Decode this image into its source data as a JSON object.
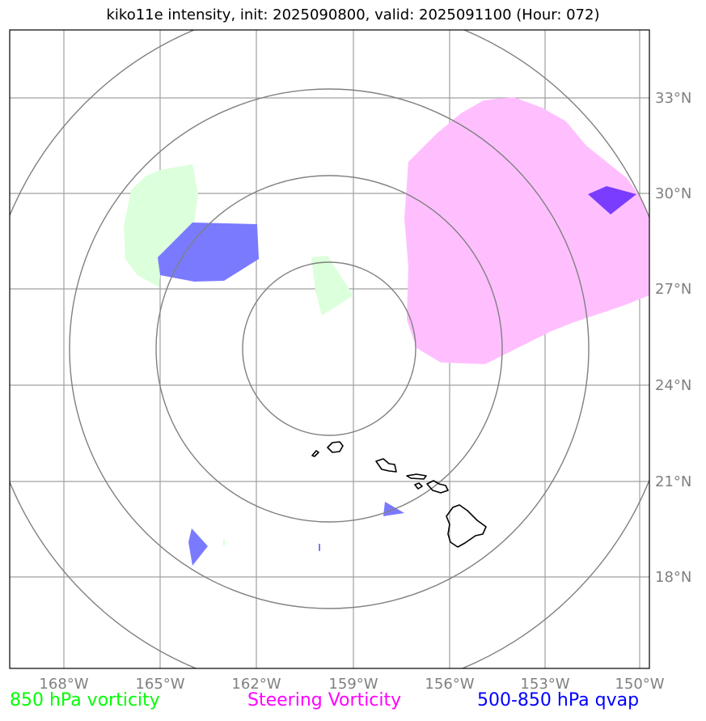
{
  "title": "kiko11e intensity, init: 2025090800, valid: 2025091100 (Hour: 072)",
  "axes": {
    "lon_labels": [
      "168°W",
      "165°W",
      "162°W",
      "159°W",
      "156°W",
      "153°W",
      "150°W"
    ],
    "lat_labels": [
      "33°N",
      "30°N",
      "27°N",
      "24°N",
      "21°N",
      "18°N"
    ]
  },
  "legend": [
    {
      "label": "850 hPa vorticity",
      "color": "#00ff00"
    },
    {
      "label": "Steering Vorticity",
      "color": "#ff00ff"
    },
    {
      "label": "500-850 hPa qvap",
      "color": "#0000ff"
    }
  ],
  "colors": {
    "vorticity_fill": "#dcffdc",
    "steering_fill": "#ffbfff",
    "qvap_fill": "#7a7aff",
    "qvap_overlap": "#7a3cff",
    "grid": "#a0a0a0",
    "range_rings": "#808080",
    "coastline": "#000000"
  }
}
